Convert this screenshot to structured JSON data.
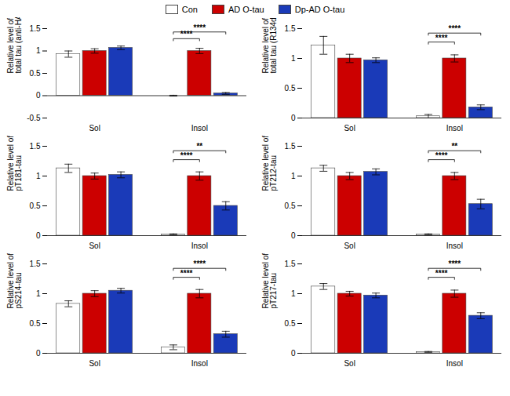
{
  "chart_data": [
    {
      "type": "bar",
      "ylabel": "Relative level of\ntotal tau (anti-HA)",
      "categories": [
        "Sol",
        "Insol"
      ],
      "series": [
        {
          "name": "Con",
          "color": "#ffffff",
          "values": [
            0.93,
            0.0
          ],
          "errors": [
            0.07,
            0.01
          ]
        },
        {
          "name": "AD O-tau",
          "color": "#cc0000",
          "values": [
            1.0,
            1.0
          ],
          "errors": [
            0.05,
            0.06
          ]
        },
        {
          "name": "Dp-AD O-tau",
          "color": "#1a3ab8",
          "values": [
            1.07,
            0.05
          ],
          "errors": [
            0.04,
            0.02
          ]
        }
      ],
      "ylim": [
        -0.5,
        1.5
      ],
      "yticks": [
        -0.5,
        0,
        0.5,
        1,
        1.5
      ],
      "legend": "top",
      "annotations": [
        {
          "text": "****",
          "category": "Insol",
          "from": "Con",
          "to": "AD O-tau"
        },
        {
          "text": "****",
          "category": "Insol",
          "from": "Con",
          "to": "Dp-AD O-tau"
        }
      ]
    },
    {
      "type": "bar",
      "ylabel": "Relative level of\ntotal tau (R134d)",
      "categories": [
        "Sol",
        "Insol"
      ],
      "series": [
        {
          "name": "Con",
          "color": "#ffffff",
          "values": [
            1.22,
            0.03
          ],
          "errors": [
            0.15,
            0.03
          ]
        },
        {
          "name": "AD O-tau",
          "color": "#cc0000",
          "values": [
            1.0,
            1.0
          ],
          "errors": [
            0.07,
            0.06
          ]
        },
        {
          "name": "Dp-AD O-tau",
          "color": "#1a3ab8",
          "values": [
            0.97,
            0.18
          ],
          "errors": [
            0.04,
            0.04
          ]
        }
      ],
      "ylim": [
        0,
        1.5
      ],
      "yticks": [
        0,
        0.5,
        1,
        1.5
      ],
      "annotations": [
        {
          "text": "****",
          "category": "Insol",
          "from": "Con",
          "to": "AD O-tau"
        },
        {
          "text": "****",
          "category": "Insol",
          "from": "Con",
          "to": "Dp-AD O-tau"
        }
      ]
    },
    {
      "type": "bar",
      "ylabel": "Relative level of\npT181-tau",
      "categories": [
        "Sol",
        "Insol"
      ],
      "series": [
        {
          "name": "Con",
          "color": "#ffffff",
          "values": [
            1.13,
            0.02
          ],
          "errors": [
            0.07,
            0.01
          ]
        },
        {
          "name": "AD O-tau",
          "color": "#cc0000",
          "values": [
            1.0,
            1.0
          ],
          "errors": [
            0.05,
            0.07
          ]
        },
        {
          "name": "Dp-AD O-tau",
          "color": "#1a3ab8",
          "values": [
            1.02,
            0.5
          ],
          "errors": [
            0.05,
            0.07
          ]
        }
      ],
      "ylim": [
        0,
        1.5
      ],
      "yticks": [
        0,
        0.5,
        1,
        1.5
      ],
      "annotations": [
        {
          "text": "****",
          "category": "Insol",
          "from": "Con",
          "to": "AD O-tau"
        },
        {
          "text": "**",
          "category": "Insol",
          "from": "Con",
          "to": "Dp-AD O-tau"
        }
      ]
    },
    {
      "type": "bar",
      "ylabel": "Relative level of\npT212-tau",
      "categories": [
        "Sol",
        "Insol"
      ],
      "series": [
        {
          "name": "Con",
          "color": "#ffffff",
          "values": [
            1.13,
            0.02
          ],
          "errors": [
            0.05,
            0.01
          ]
        },
        {
          "name": "AD O-tau",
          "color": "#cc0000",
          "values": [
            1.0,
            1.0
          ],
          "errors": [
            0.06,
            0.06
          ]
        },
        {
          "name": "Dp-AD O-tau",
          "color": "#1a3ab8",
          "values": [
            1.07,
            0.53
          ],
          "errors": [
            0.05,
            0.08
          ]
        }
      ],
      "ylim": [
        0,
        1.5
      ],
      "yticks": [
        0,
        0.5,
        1,
        1.5
      ],
      "annotations": [
        {
          "text": "****",
          "category": "Insol",
          "from": "Con",
          "to": "AD O-tau"
        },
        {
          "text": "**",
          "category": "Insol",
          "from": "Con",
          "to": "Dp-AD O-tau"
        }
      ]
    },
    {
      "type": "bar",
      "ylabel": "Relative level of\npS214-tau",
      "categories": [
        "Sol",
        "Insol"
      ],
      "series": [
        {
          "name": "Con",
          "color": "#ffffff",
          "values": [
            0.83,
            0.1
          ],
          "errors": [
            0.05,
            0.04
          ]
        },
        {
          "name": "AD O-tau",
          "color": "#cc0000",
          "values": [
            1.0,
            1.0
          ],
          "errors": [
            0.05,
            0.07
          ]
        },
        {
          "name": "Dp-AD O-tau",
          "color": "#1a3ab8",
          "values": [
            1.05,
            0.32
          ],
          "errors": [
            0.04,
            0.05
          ]
        }
      ],
      "ylim": [
        0,
        1.5
      ],
      "yticks": [
        0,
        0.5,
        1,
        1.5
      ],
      "annotations": [
        {
          "text": "****",
          "category": "Insol",
          "from": "Con",
          "to": "AD O-tau"
        },
        {
          "text": "****",
          "category": "Insol",
          "from": "Con",
          "to": "Dp-AD O-tau"
        }
      ]
    },
    {
      "type": "bar",
      "ylabel": "Relative level of\npT217-tau",
      "categories": [
        "Sol",
        "Insol"
      ],
      "series": [
        {
          "name": "Con",
          "color": "#ffffff",
          "values": [
            1.12,
            0.02
          ],
          "errors": [
            0.05,
            0.01
          ]
        },
        {
          "name": "AD O-tau",
          "color": "#cc0000",
          "values": [
            1.0,
            1.0
          ],
          "errors": [
            0.04,
            0.06
          ]
        },
        {
          "name": "Dp-AD O-tau",
          "color": "#1a3ab8",
          "values": [
            0.97,
            0.63
          ],
          "errors": [
            0.04,
            0.05
          ]
        }
      ],
      "ylim": [
        0,
        1.5
      ],
      "yticks": [
        0,
        0.5,
        1,
        1.5
      ],
      "annotations": [
        {
          "text": "****",
          "category": "Insol",
          "from": "Con",
          "to": "AD O-tau"
        },
        {
          "text": "****",
          "category": "Insol",
          "from": "Con",
          "to": "Dp-AD O-tau"
        }
      ]
    }
  ]
}
